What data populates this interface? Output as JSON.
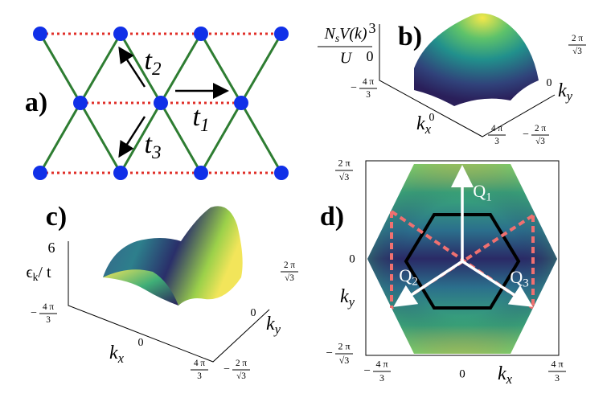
{
  "panels": {
    "a": {
      "label": "a)",
      "hoppings": [
        {
          "base": "t",
          "sub": "1"
        },
        {
          "base": "t",
          "sub": "2"
        },
        {
          "base": "t",
          "sub": "3"
        }
      ]
    },
    "b": {
      "label": "b)",
      "z_label": {
        "numerator": {
          "base": "N",
          "sub": "s",
          "rest": "V(k)"
        },
        "denominator": "U"
      },
      "z_ticks": [
        "3",
        "0"
      ],
      "kx_label": {
        "base": "k",
        "sub": "x"
      },
      "ky_label": {
        "base": "k",
        "sub": "y"
      },
      "kx_ticks": [
        {
          "sign": "−",
          "num": "4 π",
          "den": "3"
        },
        "0",
        {
          "num": "4 π",
          "den": "3"
        }
      ],
      "ky_ticks": [
        {
          "sign": "−",
          "num": "2 π",
          "den": "√3"
        },
        "0",
        {
          "num": "2 π",
          "den": "√3"
        }
      ]
    },
    "c": {
      "label": "c)",
      "z_label": {
        "base": "ϵ",
        "sub": "k",
        "rest": "/ t"
      },
      "z_ticks": [
        "6"
      ],
      "kx_label": {
        "base": "k",
        "sub": "x"
      },
      "ky_label": {
        "base": "k",
        "sub": "y"
      },
      "kx_ticks": [
        {
          "sign": "−",
          "num": "4 π",
          "den": "3"
        },
        "0",
        {
          "num": "4 π",
          "den": "3"
        }
      ],
      "ky_ticks": [
        {
          "sign": "−",
          "num": "2 π",
          "den": "√3"
        },
        "0",
        {
          "num": "2 π",
          "den": "√3"
        }
      ]
    },
    "d": {
      "label": "d)",
      "x_label": {
        "base": "k",
        "sub": "x"
      },
      "y_label": {
        "base": "k",
        "sub": "y"
      },
      "x_ticks": [
        {
          "sign": "−",
          "num": "4 π",
          "den": "3"
        },
        "0",
        {
          "num": "4 π",
          "den": "3"
        }
      ],
      "y_ticks": [
        {
          "sign": "−",
          "num": "2 π",
          "den": "√3"
        },
        "0",
        {
          "num": "2 π",
          "den": "√3"
        }
      ],
      "vectors": [
        {
          "base": "Q",
          "sub": "1"
        },
        {
          "base": "Q",
          "sub": "2"
        },
        {
          "base": "Q",
          "sub": "3"
        }
      ]
    }
  }
}
